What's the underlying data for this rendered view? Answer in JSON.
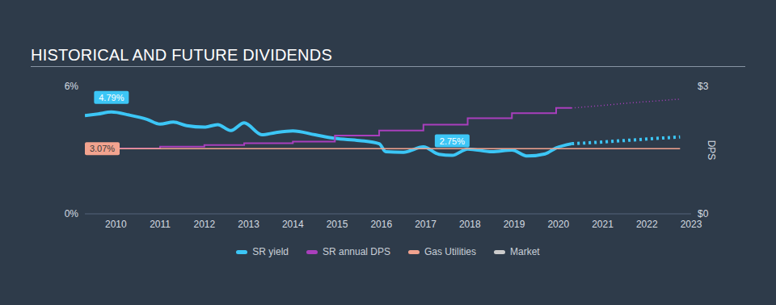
{
  "chart_data": {
    "type": "line",
    "title": "HISTORICAL AND FUTURE DIVIDENDS",
    "x": [
      2009.3,
      2009.6,
      2009.9,
      2010.3,
      2010.7,
      2011.0,
      2011.3,
      2011.6,
      2012.0,
      2012.3,
      2012.6,
      2012.9,
      2013.3,
      2013.6,
      2014.0,
      2014.5,
      2014.95,
      2015.5,
      2015.95,
      2016.1,
      2016.5,
      2016.95,
      2017.3,
      2017.6,
      2017.95,
      2018.5,
      2018.95,
      2019.3,
      2019.7,
      2019.95,
      2020.3,
      2021.0,
      2021.5,
      2022.0,
      2022.75
    ],
    "xlim": [
      2009.3,
      2023
    ],
    "xticks": [
      2010,
      2011,
      2012,
      2013,
      2014,
      2015,
      2016,
      2017,
      2018,
      2019,
      2020,
      2021,
      2022,
      2023
    ],
    "ylim": [
      0,
      6
    ],
    "yticks": [
      {
        "value": 0,
        "label": "0%"
      },
      {
        "value": 6,
        "label": "6%"
      }
    ],
    "y2lim": [
      0,
      3
    ],
    "y2ticks": [
      {
        "value": 0,
        "label": "$0"
      },
      {
        "value": 3,
        "label": "$3"
      }
    ],
    "y2_label": "DPS",
    "series": [
      {
        "name": "SR yield",
        "color": "#3cc6f6",
        "values": [
          4.62,
          4.7,
          4.79,
          4.65,
          4.45,
          4.22,
          4.32,
          4.15,
          4.08,
          4.2,
          3.92,
          4.28,
          3.72,
          3.82,
          3.9,
          3.72,
          3.55,
          3.45,
          3.3,
          2.92,
          2.9,
          3.15,
          2.8,
          2.75,
          3.05,
          2.92,
          3.0,
          2.72,
          2.82,
          3.1,
          3.3,
          null,
          null,
          null,
          null
        ],
        "forecast": [
          null,
          null,
          null,
          null,
          null,
          null,
          null,
          null,
          null,
          null,
          null,
          null,
          null,
          null,
          null,
          null,
          null,
          null,
          null,
          null,
          null,
          null,
          null,
          null,
          null,
          null,
          null,
          null,
          null,
          null,
          3.3,
          3.38,
          3.45,
          3.52,
          3.62
        ]
      },
      {
        "name": "SR annual DPS",
        "color": "#a93fbd",
        "axis": "y2",
        "type": "step",
        "values": [
          1.54,
          1.54,
          1.54,
          1.54,
          1.54,
          1.58,
          1.58,
          1.58,
          1.62,
          1.62,
          1.62,
          1.66,
          1.66,
          1.66,
          1.7,
          1.7,
          1.84,
          1.84,
          1.96,
          1.96,
          1.96,
          2.1,
          2.1,
          2.1,
          2.25,
          2.25,
          2.37,
          2.37,
          2.37,
          2.49,
          2.49,
          null,
          null,
          null,
          null
        ],
        "forecast": [
          null,
          null,
          null,
          null,
          null,
          null,
          null,
          null,
          null,
          null,
          null,
          null,
          null,
          null,
          null,
          null,
          null,
          null,
          null,
          null,
          null,
          null,
          null,
          null,
          null,
          null,
          null,
          null,
          null,
          null,
          2.49,
          2.55,
          2.6,
          2.64,
          2.7
        ]
      },
      {
        "name": "Gas Utilities",
        "color": "#f2a38f",
        "values": [
          3.07,
          3.07,
          3.07,
          3.07,
          3.07,
          3.07,
          3.07,
          3.07,
          3.07,
          3.07,
          3.07,
          3.07,
          3.07,
          3.07,
          3.07,
          3.07,
          3.07,
          3.07,
          3.07,
          3.07,
          3.07,
          3.07,
          3.07,
          3.07,
          3.07,
          3.07,
          3.07,
          3.07,
          3.07,
          3.07,
          3.07,
          3.07,
          3.07,
          3.07,
          3.07
        ]
      },
      {
        "name": "Market",
        "color": "#cccccc",
        "values": [
          null,
          null,
          null,
          null,
          null,
          null,
          null,
          null,
          null,
          null,
          null,
          null,
          null,
          null,
          null,
          null,
          null,
          null,
          null,
          null,
          null,
          null,
          null,
          null,
          null,
          null,
          null,
          null,
          null,
          null,
          null,
          null,
          null,
          null,
          null
        ]
      }
    ],
    "annotations": [
      {
        "series": "SR yield",
        "x": 2009.9,
        "y": 4.79,
        "text": "4.79%"
      },
      {
        "series": "Gas Utilities",
        "x": 2009.3,
        "y": 3.07,
        "text": "3.07%"
      },
      {
        "series": "SR yield",
        "x": 2017.6,
        "y": 2.75,
        "text": "2.75%"
      }
    ]
  }
}
